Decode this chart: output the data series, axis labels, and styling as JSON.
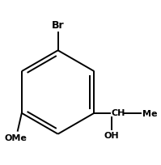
{
  "bg_color": "#ffffff",
  "line_color": "#000000",
  "text_color": "#000000",
  "br_label": "Br",
  "ome_label": "OMe",
  "ch_label": "CH",
  "oh_label": "OH",
  "me_label": "Me",
  "figsize": [
    1.99,
    2.05
  ],
  "dpi": 100
}
